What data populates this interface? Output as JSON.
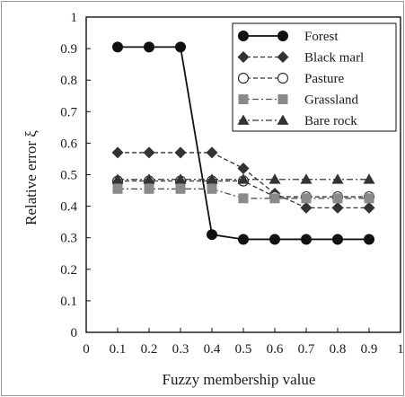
{
  "chart_data": {
    "type": "line",
    "xlabel": "Fuzzy membership value",
    "ylabel": "Relative error ξ",
    "xlim": [
      0,
      1
    ],
    "ylim": [
      0,
      1
    ],
    "x_ticks": [
      "0",
      "0.1",
      "0.2",
      "0.3",
      "0.4",
      "0.5",
      "0.6",
      "0.7",
      "0.8",
      "0.9",
      "1"
    ],
    "y_ticks": [
      "0",
      "0.1",
      "0.2",
      "0.3",
      "0.4",
      "0.5",
      "0.6",
      "0.7",
      "0.8",
      "0.9",
      "1"
    ],
    "grid": false,
    "legend_position": "top-right",
    "x": [
      0.1,
      0.2,
      0.3,
      0.4,
      0.5,
      0.6,
      0.7,
      0.8,
      0.9
    ],
    "series": [
      {
        "name": "Forest",
        "values": [
          0.905,
          0.905,
          0.905,
          0.31,
          0.295,
          0.295,
          0.295,
          0.295,
          0.295
        ],
        "marker": "circle-filled",
        "line": "solid",
        "color": "#111111"
      },
      {
        "name": "Black marl",
        "values": [
          0.57,
          0.57,
          0.57,
          0.57,
          0.52,
          0.44,
          0.395,
          0.395,
          0.395
        ],
        "marker": "diamond",
        "line": "dashed",
        "color": "#333333"
      },
      {
        "name": "Pasture",
        "values": [
          0.48,
          0.48,
          0.48,
          0.48,
          0.48,
          0.43,
          0.43,
          0.43,
          0.43
        ],
        "marker": "circle-open",
        "line": "dashed",
        "color": "#333333"
      },
      {
        "name": "Grassland",
        "values": [
          0.455,
          0.455,
          0.455,
          0.455,
          0.425,
          0.425,
          0.425,
          0.425,
          0.425
        ],
        "marker": "square",
        "line": "dashdot",
        "color": "#8a8a8a"
      },
      {
        "name": "Bare rock",
        "values": [
          0.485,
          0.485,
          0.485,
          0.485,
          0.485,
          0.485,
          0.485,
          0.485,
          0.485
        ],
        "marker": "triangle",
        "line": "dashdot",
        "color": "#333333"
      }
    ]
  }
}
